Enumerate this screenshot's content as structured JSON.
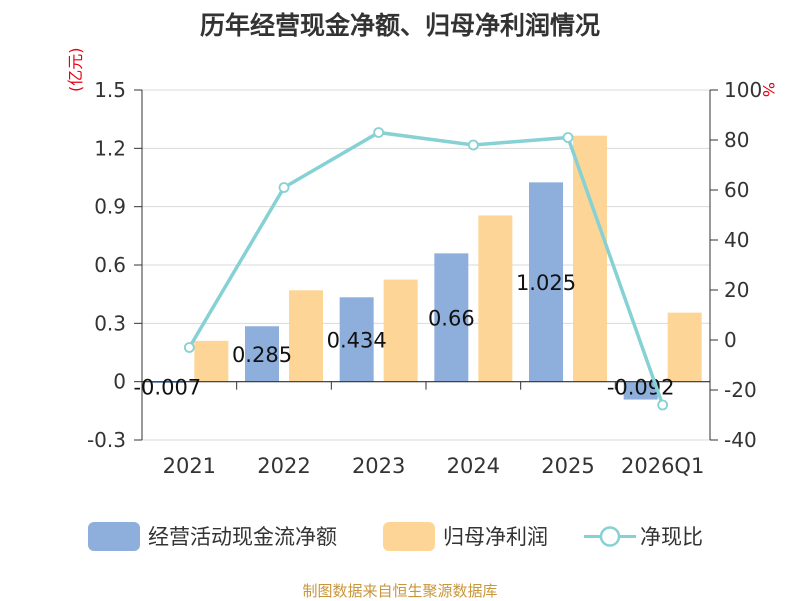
{
  "title": "历年经营现金净额、归母净利润情况",
  "unit_left": "(亿元)",
  "unit_right": "%",
  "legend": {
    "bar1": "经营活动现金流净额",
    "bar2": "归母净利润",
    "line": "净现比"
  },
  "source": "制图数据来自恒生聚源数据库",
  "colors": {
    "bar1": "#8eafdc",
    "bar2": "#fdd697",
    "line": "#86d1d4",
    "unit": "#e60012",
    "axis": "#333333",
    "grid": "#d9d9d9",
    "source": "#c8963c"
  },
  "chart_data": {
    "type": "bar+line",
    "categories": [
      "2021",
      "2022",
      "2023",
      "2024",
      "2025",
      "2026Q1"
    ],
    "series": [
      {
        "name": "经营活动现金流净额",
        "type": "bar",
        "axis": "left",
        "values": [
          -0.007,
          0.285,
          0.434,
          0.66,
          1.025,
          -0.092
        ],
        "labels": [
          "-0.007",
          "0.285",
          "0.434",
          "0.66",
          "1.025",
          "-0.092"
        ]
      },
      {
        "name": "归母净利润",
        "type": "bar",
        "axis": "left",
        "values": [
          0.21,
          0.47,
          0.525,
          0.855,
          1.265,
          0.355
        ]
      },
      {
        "name": "净现比",
        "type": "line",
        "axis": "right",
        "values": [
          -3,
          61,
          83,
          78,
          81,
          -26
        ]
      }
    ],
    "y_left": {
      "min": -0.3,
      "max": 1.5,
      "ticks": [
        "-0.3",
        "0",
        "0.3",
        "0.6",
        "0.9",
        "1.2",
        "1.5"
      ]
    },
    "y_right": {
      "min": -40,
      "max": 100,
      "ticks": [
        "-40",
        "-20",
        "0",
        "20",
        "40",
        "60",
        "80",
        "100"
      ]
    },
    "grid": true,
    "legend_position": "bottom"
  }
}
